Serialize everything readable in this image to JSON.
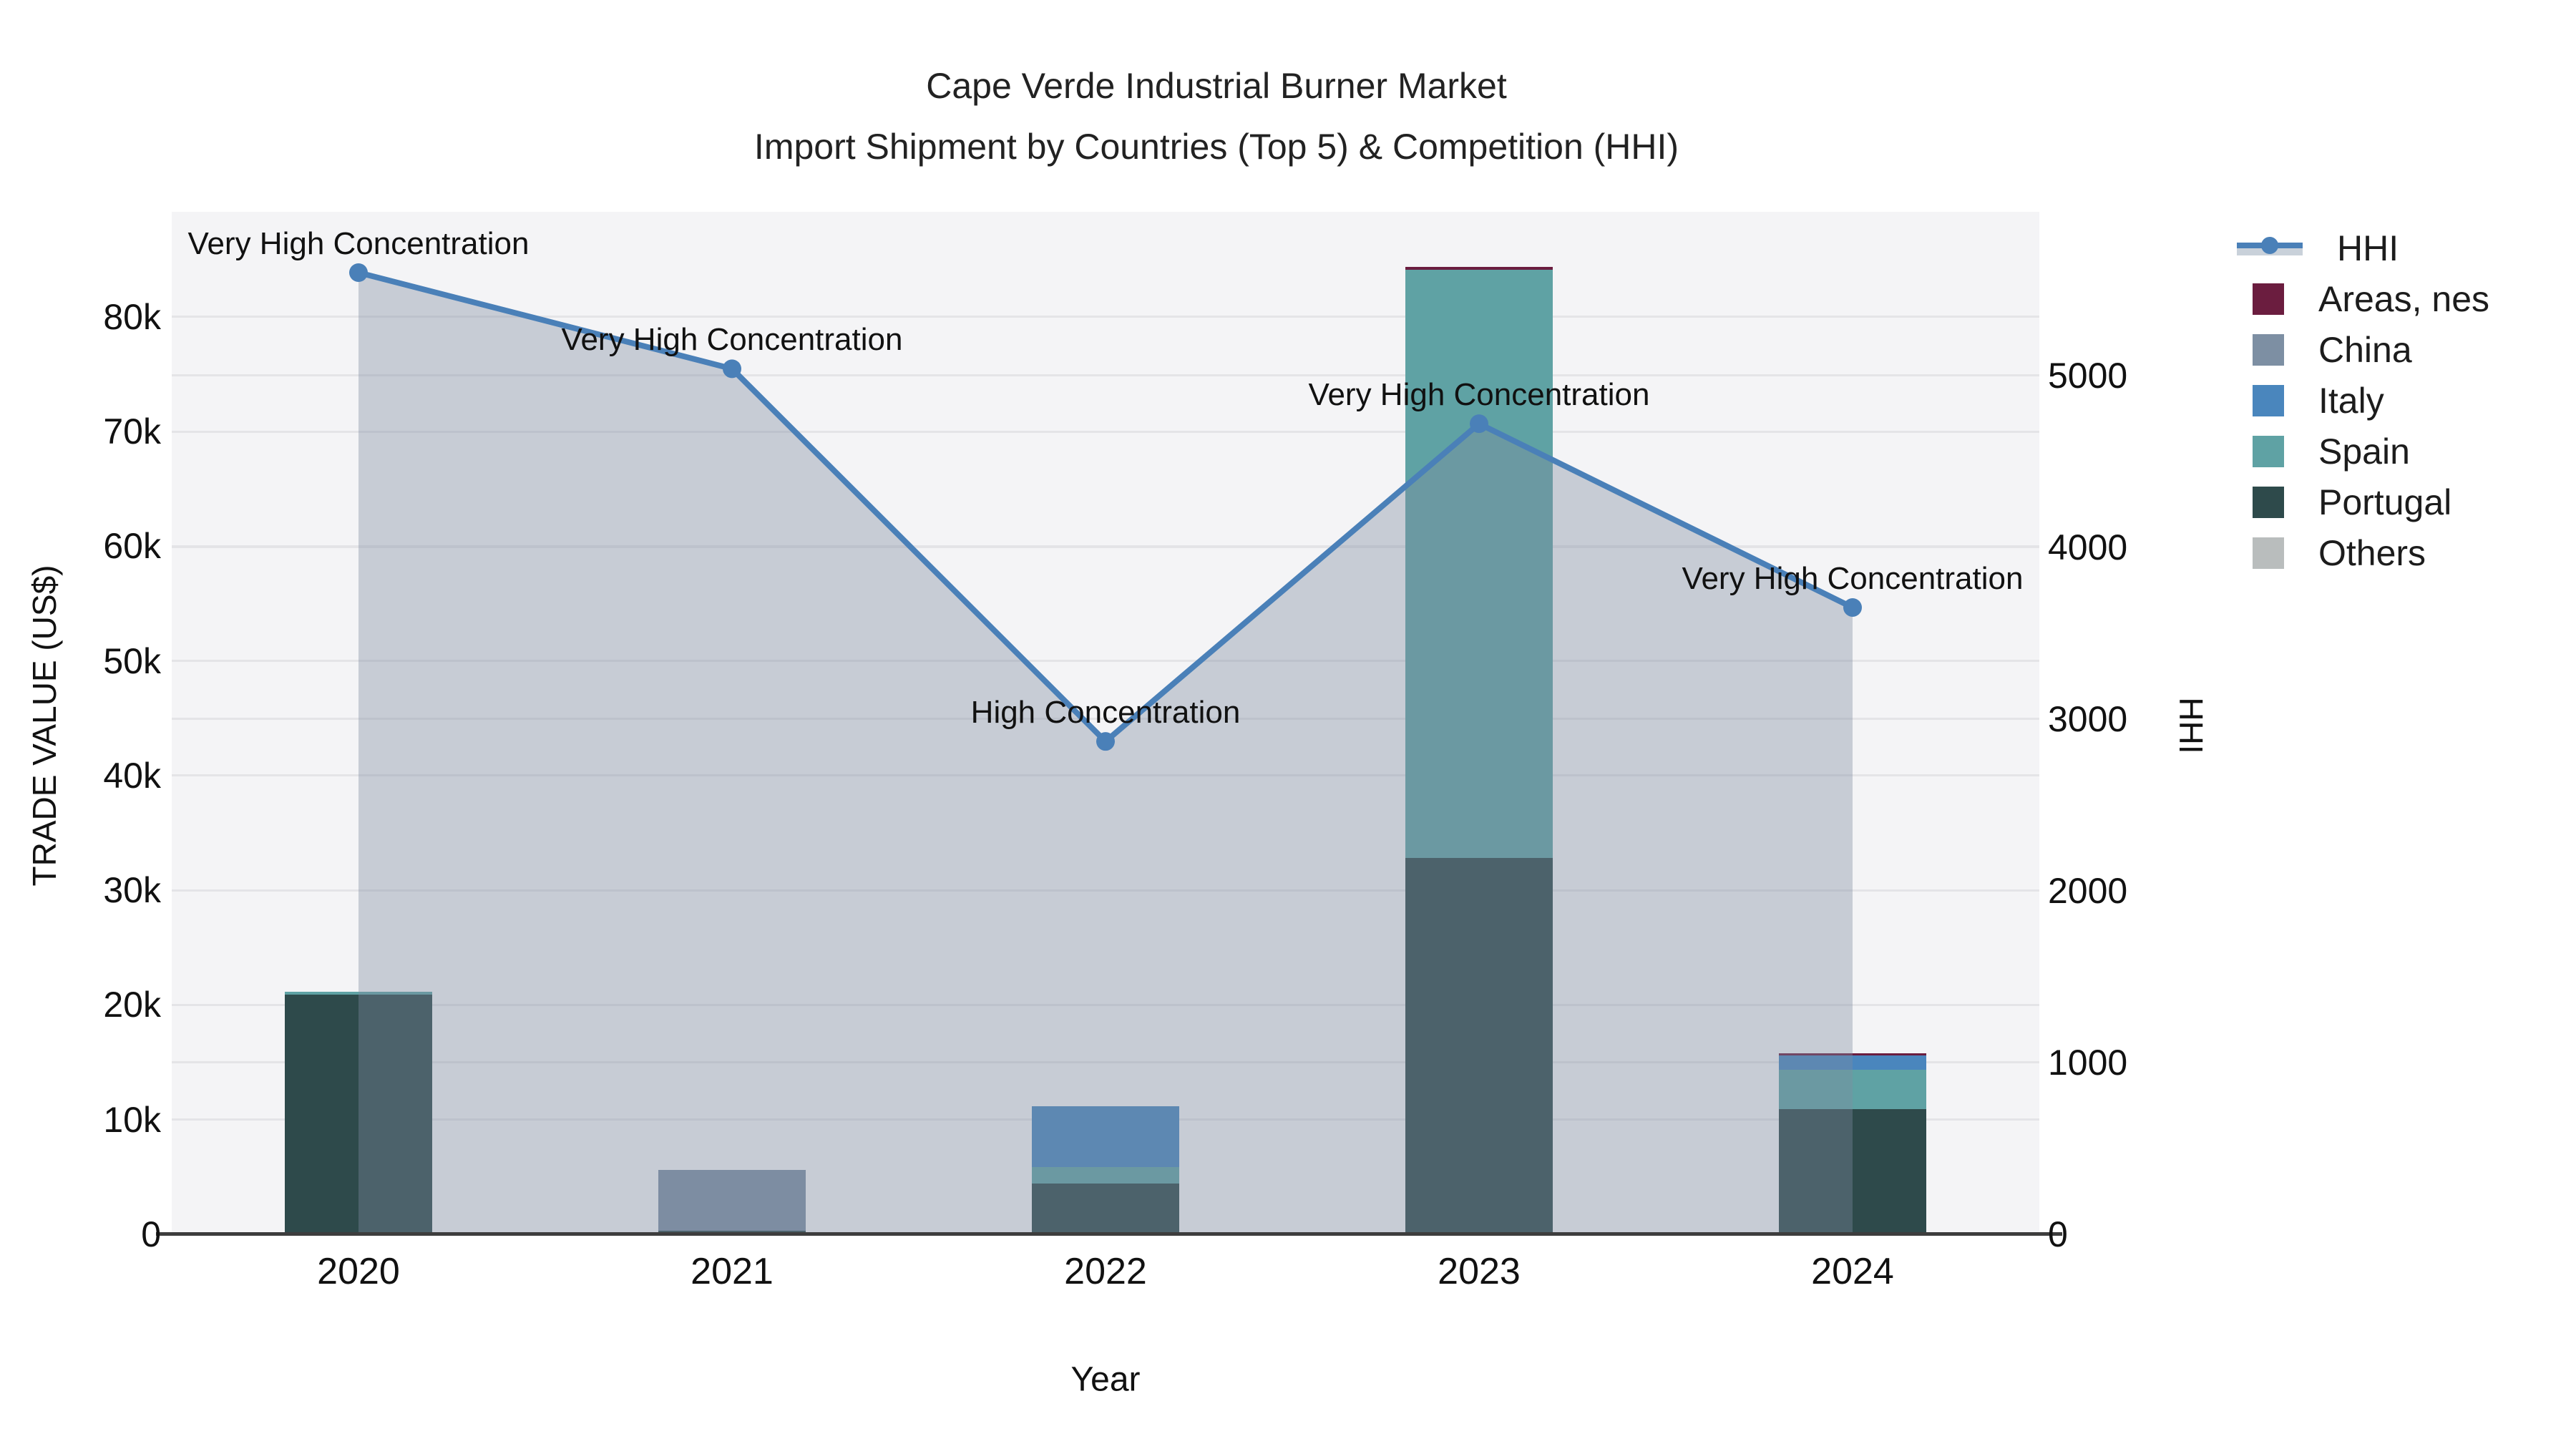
{
  "title": {
    "line1": "Cape Verde Industrial Burner Market",
    "line2": "Import Shipment by Countries (Top 5) & Competition (HHI)"
  },
  "chart_data": {
    "type": "bar+line",
    "description": "Stacked bars of import trade value by partner country (left axis) with HHI competition line and shaded area (right axis)",
    "categories": [
      "2020",
      "2021",
      "2022",
      "2023",
      "2024"
    ],
    "bar_series": [
      {
        "name": "Areas, nes",
        "color": "#6b1d3f",
        "values": [
          0,
          0,
          0,
          250,
          200
        ]
      },
      {
        "name": "China",
        "color": "#7d8fa3",
        "values": [
          0,
          5300,
          0,
          0,
          0
        ]
      },
      {
        "name": "Italy",
        "color": "#4a86bd",
        "values": [
          0,
          0,
          5350,
          0,
          1250
        ]
      },
      {
        "name": "Spain",
        "color": "#5fa2a4",
        "values": [
          250,
          0,
          1450,
          51300,
          3450
        ]
      },
      {
        "name": "Portugal",
        "color": "#2e4a4b",
        "values": [
          20900,
          300,
          4400,
          32800,
          10900
        ]
      },
      {
        "name": "Others",
        "color": "#b9bdbd",
        "values": [
          0,
          0,
          0,
          0,
          0
        ]
      }
    ],
    "line_series": {
      "name": "HHI",
      "color": "#4a80b8",
      "values": [
        5600,
        5040,
        2870,
        4720,
        3650
      ]
    },
    "annotations": [
      "Very High Concentration",
      "Very High Concentration",
      "High Concentration",
      "Very High Concentration",
      "Very High Concentration"
    ],
    "left_axis": {
      "title": "TRADE VALUE (US$)",
      "tick_values": [
        0,
        10000,
        20000,
        30000,
        40000,
        50000,
        60000,
        70000,
        80000
      ],
      "tick_labels": [
        "0",
        "10k",
        "20k",
        "30k",
        "40k",
        "50k",
        "60k",
        "70k",
        "80k"
      ],
      "range": [
        0,
        89170
      ]
    },
    "right_axis": {
      "title": "HHI",
      "tick_values": [
        0,
        1000,
        2000,
        3000,
        4000,
        5000
      ],
      "tick_labels": [
        "0",
        "1000",
        "2000",
        "3000",
        "4000",
        "5000"
      ],
      "range": [
        0,
        5954
      ]
    },
    "x_axis": {
      "title": "Year"
    },
    "legend": [
      "HHI",
      "Areas, nes",
      "China",
      "Italy",
      "Spain",
      "Portugal",
      "Others"
    ],
    "grid": true,
    "legend_position": "right",
    "area_fill": "rgba(125,139,160,0.38)",
    "legend_band_color": "#c9d1da",
    "plot_bg": "#f4f4f6",
    "grid_color": "#e4e4e7",
    "axis_line_color": "#3d3d3d"
  }
}
